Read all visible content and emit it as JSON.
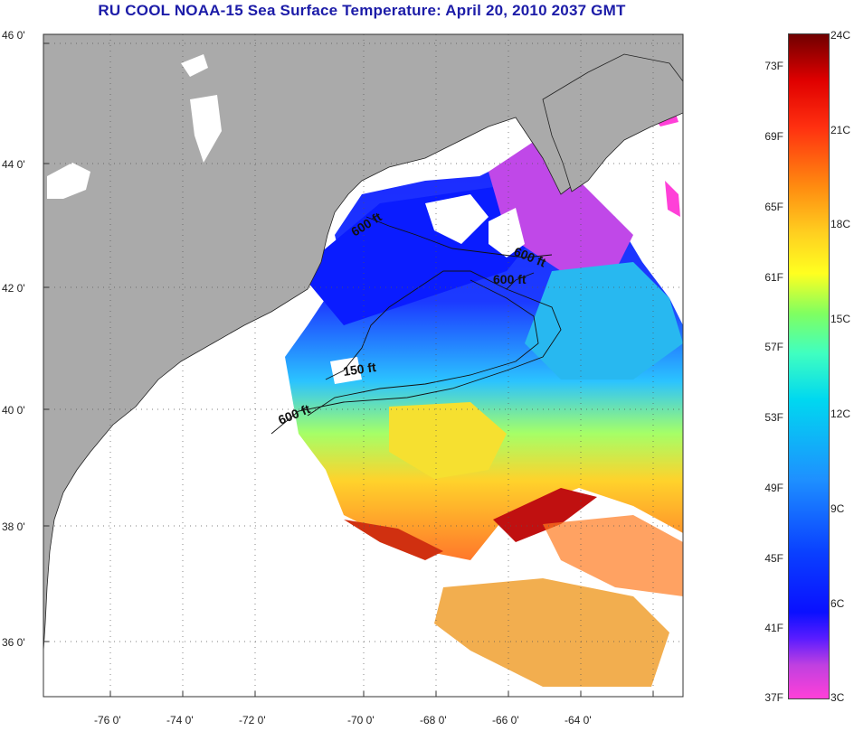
{
  "title": "RU COOL  NOAA-15  Sea Surface Temperature:  April 20, 2010 2037 GMT",
  "map": {
    "lat_labels": [
      "46 0'",
      "44 0'",
      "42 0'",
      "40 0'",
      "38 0'",
      "36 0'"
    ],
    "lon_labels": [
      "-76 0'",
      "-74 0'",
      "-72 0'",
      "-70 0'",
      "-68 0'",
      "-66 0'",
      "-64 0'"
    ],
    "contour_labels": [
      "600 ft",
      "600 ft",
      "600 ft",
      "150 ft",
      "600 ft"
    ],
    "colors": {
      "land": "#aaaaaa",
      "cloud_or_nodata": "#ffffff",
      "grid": "#555555"
    }
  },
  "colorbar": {
    "fahrenheit_labels": [
      "73F",
      "69F",
      "65F",
      "61F",
      "57F",
      "53F",
      "49F",
      "45F",
      "41F",
      "37F"
    ],
    "celsius_labels": [
      "24C",
      "21C",
      "18C",
      "15C",
      "12C",
      "9C",
      "6C",
      "3C"
    ],
    "range_f": [
      37,
      75
    ],
    "range_c": [
      3,
      24
    ]
  }
}
